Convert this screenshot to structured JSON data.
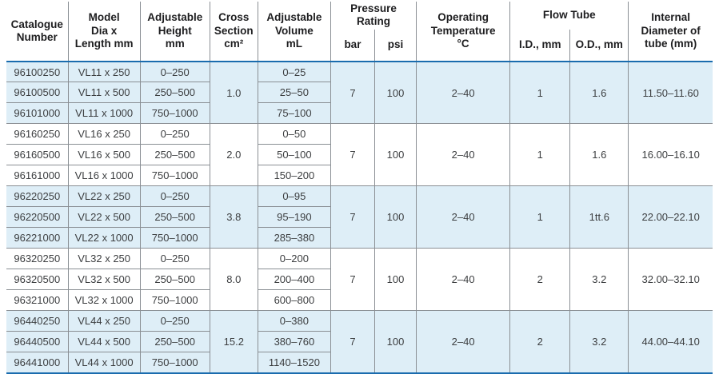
{
  "table": {
    "accent_blue": "#1a6cae",
    "group_shade_color": "#deeef7",
    "headers": {
      "catalogue": "Catalogue\nNumber",
      "model": "Model\nDia x\nLength mm",
      "height": "Adjustable\nHeight\nmm",
      "cross_section": "Cross\nSection\ncm²",
      "volume": "Adjustable\nVolume\nmL",
      "pressure_rating": "Pressure Rating",
      "bar": "bar",
      "psi": "psi",
      "temperature": "Operating\nTemperature\n°C",
      "flow_tube": "Flow Tube",
      "id_mm": "I.D., mm",
      "od_mm": "O.D., mm",
      "internal_diameter": "Internal\nDiameter of\ntube (mm)"
    },
    "groups": [
      {
        "rows": [
          {
            "catalogue": "96100250",
            "model": "VL11 x 250",
            "height": "0–250",
            "volume": "0–25"
          },
          {
            "catalogue": "96100500",
            "model": "VL11 x 500",
            "height": "250–500",
            "volume": "25–50"
          },
          {
            "catalogue": "96101000",
            "model": "VL11 x 1000",
            "height": "750–1000",
            "volume": "75–100"
          }
        ],
        "cross_section": "1.0",
        "bar": "7",
        "psi": "100",
        "temperature": "2–40",
        "id": "1",
        "od": "1.6",
        "internal_diameter": "11.50–11.60"
      },
      {
        "rows": [
          {
            "catalogue": "96160250",
            "model": "VL16 x 250",
            "height": "0–250",
            "volume": "0–50"
          },
          {
            "catalogue": "96160500",
            "model": "VL16 x 500",
            "height": "250–500",
            "volume": "50–100"
          },
          {
            "catalogue": "96161000",
            "model": "VL16 x 1000",
            "height": "750–1000",
            "volume": "150–200"
          }
        ],
        "cross_section": "2.0",
        "bar": "7",
        "psi": "100",
        "temperature": "2–40",
        "id": "1",
        "od": "1.6",
        "internal_diameter": "16.00–16.10"
      },
      {
        "rows": [
          {
            "catalogue": "96220250",
            "model": "VL22 x 250",
            "height": "0–250",
            "volume": "0–95"
          },
          {
            "catalogue": "96220500",
            "model": "VL22 x 500",
            "height": "250–500",
            "volume": "95–190"
          },
          {
            "catalogue": "96221000",
            "model": "VL22 x 1000",
            "height": "750–1000",
            "volume": "285–380"
          }
        ],
        "cross_section": "3.8",
        "bar": "7",
        "psi": "100",
        "temperature": "2–40",
        "id": "1",
        "od": "1tt.6",
        "internal_diameter": "22.00–22.10"
      },
      {
        "rows": [
          {
            "catalogue": "96320250",
            "model": "VL32 x 250",
            "height": "0–250",
            "volume": "0–200"
          },
          {
            "catalogue": "96320500",
            "model": "VL32 x 500",
            "height": "250–500",
            "volume": "200–400"
          },
          {
            "catalogue": "96321000",
            "model": "VL32 x 1000",
            "height": "750–1000",
            "volume": "600–800"
          }
        ],
        "cross_section": "8.0",
        "bar": "7",
        "psi": "100",
        "temperature": "2–40",
        "id": "2",
        "od": "3.2",
        "internal_diameter": "32.00–32.10"
      },
      {
        "rows": [
          {
            "catalogue": "96440250",
            "model": "VL44 x 250",
            "height": "0–250",
            "volume": "0–380"
          },
          {
            "catalogue": "96440500",
            "model": "VL44 x 500",
            "height": "250–500",
            "volume": "380–760"
          },
          {
            "catalogue": "96441000",
            "model": "VL44 x 1000",
            "height": "750–1000",
            "volume": "1140–1520"
          }
        ],
        "cross_section": "15.2",
        "bar": "7",
        "psi": "100",
        "temperature": "2–40",
        "id": "2",
        "od": "3.2",
        "internal_diameter": "44.00–44.10"
      }
    ]
  }
}
